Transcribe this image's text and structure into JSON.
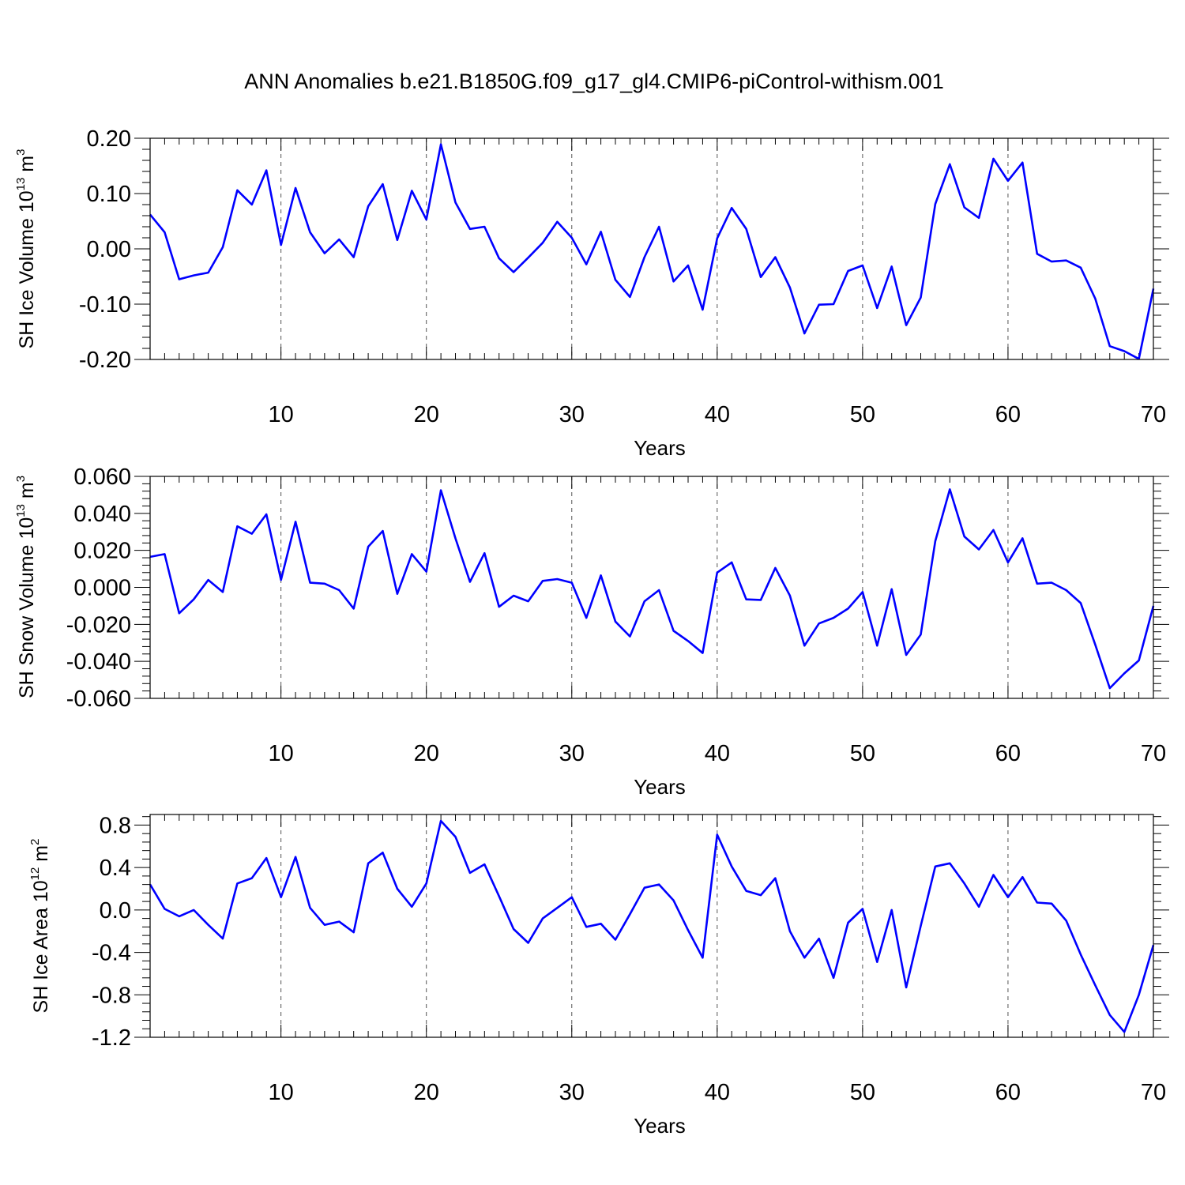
{
  "title": "ANN Anomalies b.e21.B1850G.f09_g17_gl4.CMIP6-piControl-withism.001",
  "colors": {
    "series": "#0000ff",
    "axis": "#000000",
    "grid": "#555555",
    "background": "#ffffff"
  },
  "chart_data": [
    {
      "type": "line",
      "title": "ANN Anomalies b.e21.B1850G.f09_g17_gl4.CMIP6-piControl-withism.001",
      "xlabel": "Years",
      "ylabel_main": "SH Ice Volume 10",
      "ylabel_exp": "13",
      "ylabel_unit": " m",
      "ylabel_unit_exp": "3",
      "xlim": [
        1,
        70
      ],
      "ylim": [
        -0.2,
        0.2
      ],
      "yticks": [
        -0.2,
        -0.1,
        0.0,
        0.1,
        0.2
      ],
      "ytick_labels": [
        "-0.20",
        "-0.10",
        "0.00",
        "0.10",
        "0.20"
      ],
      "xticks": [
        10,
        20,
        30,
        40,
        50,
        60,
        70
      ],
      "xtick_labels": [
        "10",
        "20",
        "30",
        "40",
        "50",
        "60",
        "70"
      ],
      "grid": "vertical dashed at major x ticks",
      "series": [
        {
          "name": "SH Ice Volume",
          "values": [
            0.062,
            0.03,
            -0.055,
            -0.048,
            -0.043,
            0.003,
            0.106,
            0.08,
            0.142,
            0.007,
            0.11,
            0.03,
            -0.008,
            0.017,
            -0.015,
            0.077,
            0.117,
            0.016,
            0.105,
            0.053,
            0.189,
            0.084,
            0.036,
            0.04,
            -0.017,
            -0.042,
            -0.016,
            0.011,
            0.049,
            0.02,
            -0.028,
            0.031,
            -0.056,
            -0.087,
            -0.015,
            0.04,
            -0.059,
            -0.03,
            -0.11,
            0.019,
            0.074,
            0.036,
            -0.051,
            -0.015,
            -0.07,
            -0.153,
            -0.101,
            -0.1,
            -0.04,
            -0.03,
            -0.107,
            -0.032,
            -0.138,
            -0.088,
            0.081,
            0.153,
            0.075,
            0.056,
            0.163,
            0.123,
            0.156,
            -0.009,
            -0.023,
            -0.021,
            -0.034,
            -0.09,
            -0.176,
            -0.185,
            -0.199,
            -0.072
          ]
        }
      ]
    },
    {
      "type": "line",
      "xlabel": "Years",
      "ylabel_main": "SH Snow Volume 10",
      "ylabel_exp": "13",
      "ylabel_unit": " m",
      "ylabel_unit_exp": "3",
      "xlim": [
        1,
        70
      ],
      "ylim": [
        -0.06,
        0.06
      ],
      "yticks": [
        -0.06,
        -0.04,
        -0.02,
        0.0,
        0.02,
        0.04,
        0.06
      ],
      "ytick_labels": [
        "-0.060",
        "-0.040",
        "-0.020",
        "0.000",
        "0.020",
        "0.040",
        "0.060"
      ],
      "xticks": [
        10,
        20,
        30,
        40,
        50,
        60,
        70
      ],
      "xtick_labels": [
        "10",
        "20",
        "30",
        "40",
        "50",
        "60",
        "70"
      ],
      "grid": "vertical dashed at major x ticks",
      "series": [
        {
          "name": "SH Snow Volume",
          "values": [
            0.0165,
            0.018,
            -0.014,
            -0.0065,
            0.004,
            -0.0025,
            0.033,
            0.029,
            0.0395,
            0.004,
            0.0355,
            0.0025,
            0.002,
            -0.0015,
            -0.0115,
            0.022,
            0.0305,
            -0.0035,
            0.018,
            0.0085,
            0.0525,
            0.0265,
            0.003,
            0.0185,
            -0.0105,
            -0.0045,
            -0.0075,
            0.0035,
            0.0045,
            0.0025,
            -0.0165,
            0.0065,
            -0.0185,
            -0.0265,
            -0.0075,
            -0.0015,
            -0.0235,
            -0.029,
            -0.0355,
            0.008,
            0.0135,
            -0.0065,
            -0.0068,
            0.0105,
            -0.0045,
            -0.0315,
            -0.0195,
            -0.0165,
            -0.0115,
            -0.0025,
            -0.0315,
            -0.001,
            -0.0365,
            -0.0255,
            0.025,
            0.053,
            0.0275,
            0.0205,
            0.031,
            0.0135,
            0.0265,
            0.002,
            0.0025,
            -0.0015,
            -0.0085,
            -0.031,
            -0.0545,
            -0.0465,
            -0.0395,
            -0.01
          ]
        }
      ]
    },
    {
      "type": "line",
      "xlabel": "Years",
      "ylabel_main": "SH Ice Area 10",
      "ylabel_exp": "12",
      "ylabel_unit": " m",
      "ylabel_unit_exp": "2",
      "xlim": [
        1,
        70
      ],
      "ylim": [
        -1.2,
        0.9
      ],
      "yticks": [
        -1.2,
        -0.8,
        -0.4,
        0.0,
        0.4,
        0.8
      ],
      "ytick_labels": [
        "-1.2",
        "-0.8",
        "-0.4",
        "0.0",
        "0.4",
        "0.8"
      ],
      "xticks": [
        10,
        20,
        30,
        40,
        50,
        60,
        70
      ],
      "xtick_labels": [
        "10",
        "20",
        "30",
        "40",
        "50",
        "60",
        "70"
      ],
      "grid": "vertical dashed at major x ticks",
      "series": [
        {
          "name": "SH Ice Area",
          "values": [
            0.24,
            0.01,
            -0.06,
            0.0,
            -0.14,
            -0.27,
            0.25,
            0.3,
            0.49,
            0.12,
            0.5,
            0.02,
            -0.14,
            -0.11,
            -0.21,
            0.44,
            0.54,
            0.2,
            0.03,
            0.25,
            0.84,
            0.69,
            0.35,
            0.43,
            0.13,
            -0.18,
            -0.31,
            -0.08,
            0.02,
            0.12,
            -0.16,
            -0.13,
            -0.28,
            -0.04,
            0.21,
            0.24,
            0.09,
            -0.19,
            -0.45,
            0.71,
            0.41,
            0.18,
            0.14,
            0.3,
            -0.2,
            -0.45,
            -0.27,
            -0.64,
            -0.12,
            0.01,
            -0.49,
            0.0,
            -0.73,
            -0.15,
            0.41,
            0.44,
            0.25,
            0.03,
            0.33,
            0.12,
            0.31,
            0.07,
            0.06,
            -0.1,
            -0.42,
            -0.71,
            -0.99,
            -1.15,
            -0.8,
            -0.33
          ]
        }
      ]
    }
  ]
}
